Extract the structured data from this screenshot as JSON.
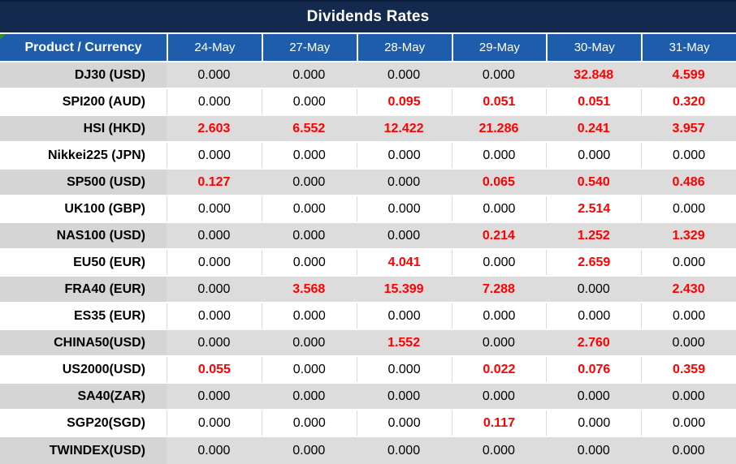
{
  "title": "Dividends Rates",
  "colors": {
    "title_bar": "#13294E",
    "title_edge": "#0A1C38",
    "header_blue": "#1E5CAC",
    "stripe_label": "#D5D5D5",
    "stripe_value": "#DCDCDC",
    "value_red": "#FF0000",
    "corner_marker_green": "#2F8F2F"
  },
  "chart_data": {
    "type": "table",
    "title": "Dividends Rates",
    "columns": [
      "Product / Currency",
      "24-May",
      "27-May",
      "28-May",
      "29-May",
      "30-May",
      "31-May"
    ],
    "rows": [
      {
        "product": "DJ30 (USD)",
        "values": [
          "0.000",
          "0.000",
          "0.000",
          "0.000",
          "32.848",
          "4.599"
        ]
      },
      {
        "product": "SPI200 (AUD)",
        "values": [
          "0.000",
          "0.000",
          "0.095",
          "0.051",
          "0.051",
          "0.320"
        ]
      },
      {
        "product": "HSI (HKD)",
        "values": [
          "2.603",
          "6.552",
          "12.422",
          "21.286",
          "0.241",
          "3.957"
        ]
      },
      {
        "product": "Nikkei225 (JPN)",
        "values": [
          "0.000",
          "0.000",
          "0.000",
          "0.000",
          "0.000",
          "0.000"
        ]
      },
      {
        "product": "SP500 (USD)",
        "values": [
          "0.127",
          "0.000",
          "0.000",
          "0.065",
          "0.540",
          "0.486"
        ]
      },
      {
        "product": "UK100 (GBP)",
        "values": [
          "0.000",
          "0.000",
          "0.000",
          "0.000",
          "2.514",
          "0.000"
        ]
      },
      {
        "product": "NAS100 (USD)",
        "values": [
          "0.000",
          "0.000",
          "0.000",
          "0.214",
          "1.252",
          "1.329"
        ]
      },
      {
        "product": "EU50 (EUR)",
        "values": [
          "0.000",
          "0.000",
          "4.041",
          "0.000",
          "2.659",
          "0.000"
        ]
      },
      {
        "product": "FRA40 (EUR)",
        "values": [
          "0.000",
          "3.568",
          "15.399",
          "7.288",
          "0.000",
          "2.430"
        ]
      },
      {
        "product": "ES35 (EUR)",
        "values": [
          "0.000",
          "0.000",
          "0.000",
          "0.000",
          "0.000",
          "0.000"
        ]
      },
      {
        "product": "CHINA50(USD)",
        "values": [
          "0.000",
          "0.000",
          "1.552",
          "0.000",
          "2.760",
          "0.000"
        ]
      },
      {
        "product": "US2000(USD)",
        "values": [
          "0.055",
          "0.000",
          "0.000",
          "0.022",
          "0.076",
          "0.359"
        ]
      },
      {
        "product": "SA40(ZAR)",
        "values": [
          "0.000",
          "0.000",
          "0.000",
          "0.000",
          "0.000",
          "0.000"
        ]
      },
      {
        "product": "SGP20(SGD)",
        "values": [
          "0.000",
          "0.000",
          "0.000",
          "0.117",
          "0.000",
          "0.000"
        ]
      },
      {
        "product": "TWINDEX(USD)",
        "values": [
          "0.000",
          "0.000",
          "0.000",
          "0.000",
          "0.000",
          "0.000"
        ]
      }
    ]
  }
}
